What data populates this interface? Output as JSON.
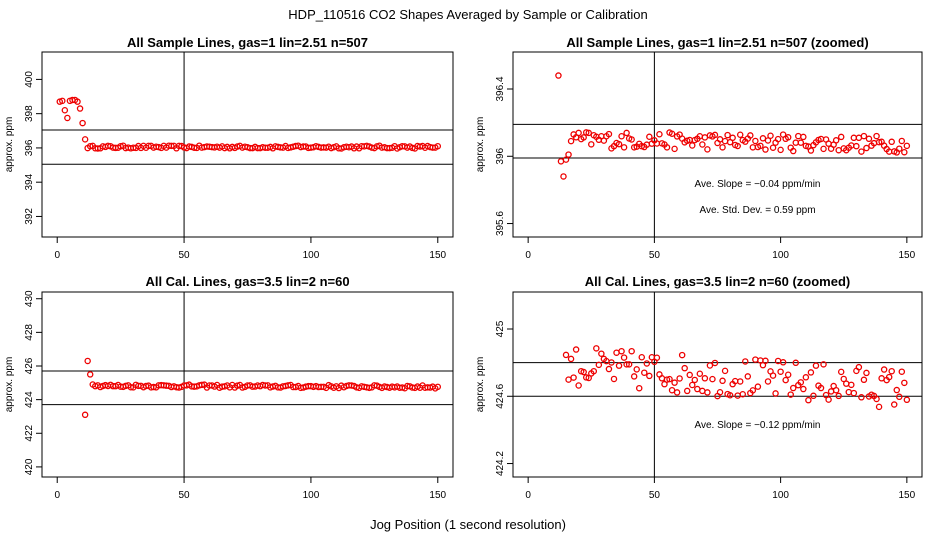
{
  "main_title": "HDP_110516  CO2 Shapes Averaged by Sample or Calibration",
  "x_axis_label": "Jog Position (1 second resolution)",
  "colors": {
    "points": "#ee0000",
    "axes": "#000000"
  },
  "chart_data": [
    {
      "type": "scatter",
      "title": "All Sample Lines, gas=1 lin=2.51 n=507",
      "ylabel": "approx. ppm",
      "xlim": [
        -6,
        156
      ],
      "ylim": [
        390.8,
        401.6
      ],
      "xticks": [
        0,
        50,
        100,
        150
      ],
      "yticks": [
        392,
        394,
        396,
        398,
        400
      ],
      "hlines": [
        395.05,
        397.05
      ],
      "vline": 50,
      "annotations": [],
      "series": [
        {
          "x": [],
          "y": []
        }
      ]
    },
    {
      "type": "scatter",
      "title": "All Sample Lines, gas=1 lin=2.51 n=507 (zoomed)",
      "ylabel": "approx. ppm",
      "xlim": [
        -6,
        156
      ],
      "ylim": [
        395.52,
        396.62
      ],
      "xticks": [
        0,
        50,
        100,
        150
      ],
      "yticks": [
        395.6,
        396.0,
        396.4
      ],
      "hlines": [
        395.99,
        396.19
      ],
      "vline": 50,
      "annotations": [
        "Ave. Slope =  −0.04  ppm/min",
        "Ave. Std. Dev. =  0.59  ppm"
      ],
      "series": [
        {
          "x": [],
          "y": []
        }
      ]
    },
    {
      "type": "scatter",
      "title": "All Cal. Lines, gas=3.5 lin=2 n=60",
      "ylabel": "approx. ppm",
      "xlim": [
        -6,
        156
      ],
      "ylim": [
        419.4,
        430.4
      ],
      "xticks": [
        0,
        50,
        100,
        150
      ],
      "yticks": [
        420,
        422,
        424,
        426,
        428,
        430
      ],
      "hlines": [
        423.7,
        425.7
      ],
      "vline": 50,
      "annotations": [],
      "series": [
        {
          "x": [],
          "y": []
        }
      ]
    },
    {
      "type": "scatter",
      "title": "All Cal. Lines, gas=3.5 lin=2 n=60 (zoomed)",
      "ylabel": "approx. ppm",
      "xlim": [
        -6,
        156
      ],
      "ylim": [
        424.12,
        425.22
      ],
      "xticks": [
        0,
        50,
        100,
        150
      ],
      "yticks": [
        424.2,
        424.6,
        425.0
      ],
      "hlines": [
        424.6,
        424.8
      ],
      "vline": 50,
      "annotations": [
        "Ave. Slope =  −0.12  ppm/min"
      ],
      "series": [
        {
          "x": [],
          "y": []
        }
      ]
    }
  ]
}
